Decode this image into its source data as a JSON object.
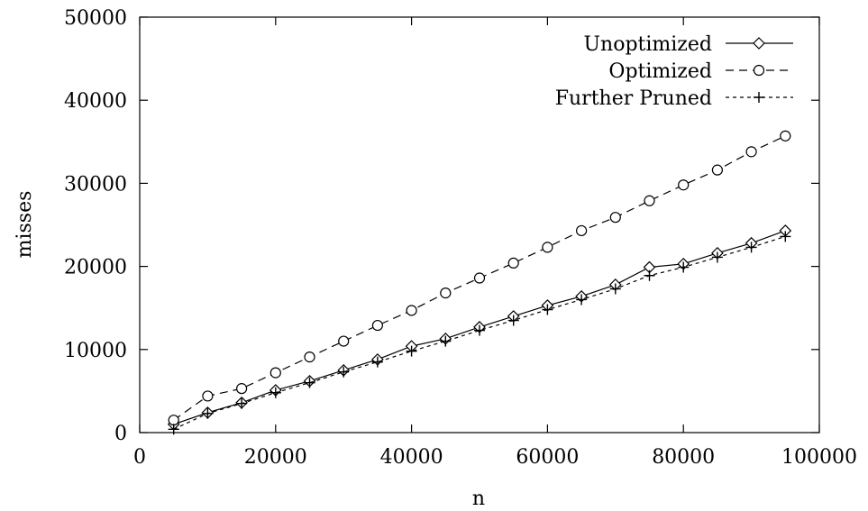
{
  "chart_data": {
    "type": "line",
    "xlabel": "n",
    "ylabel": "misses",
    "xlim": [
      0,
      100000
    ],
    "ylim": [
      0,
      50000
    ],
    "x_ticks": [
      0,
      20000,
      40000,
      60000,
      80000,
      100000
    ],
    "y_ticks": [
      0,
      10000,
      20000,
      30000,
      40000,
      50000
    ],
    "x_tick_labels": [
      "0",
      "20000",
      "40000",
      "60000",
      "80000",
      "100000"
    ],
    "y_tick_labels": [
      "0",
      "10000",
      "20000",
      "30000",
      "40000",
      "50000"
    ],
    "grid": false,
    "legend_position": "top-right",
    "x": [
      5000,
      10000,
      15000,
      20000,
      25000,
      30000,
      35000,
      40000,
      45000,
      50000,
      55000,
      60000,
      65000,
      70000,
      75000,
      80000,
      85000,
      90000,
      95000
    ],
    "series": [
      {
        "name": "Unoptimized",
        "line_style": "solid",
        "marker": "diamond",
        "values": [
          1000,
          2400,
          3600,
          5100,
          6200,
          7500,
          8800,
          10400,
          11300,
          12700,
          14000,
          15300,
          16400,
          17800,
          19900,
          20300,
          21600,
          22800,
          24300
        ]
      },
      {
        "name": "Optimized",
        "line_style": "long-dash",
        "marker": "circle",
        "values": [
          1500,
          4400,
          5300,
          7200,
          9100,
          11000,
          12900,
          14700,
          16800,
          18600,
          20400,
          22300,
          24300,
          25900,
          27900,
          29800,
          31600,
          33800,
          35700
        ]
      },
      {
        "name": "Further Pruned",
        "line_style": "short-dash",
        "marker": "plus",
        "values": [
          400,
          2300,
          3500,
          4800,
          6000,
          7300,
          8500,
          9800,
          11000,
          12300,
          13500,
          14800,
          16000,
          17300,
          18900,
          19900,
          21100,
          22300,
          23600
        ]
      }
    ]
  }
}
